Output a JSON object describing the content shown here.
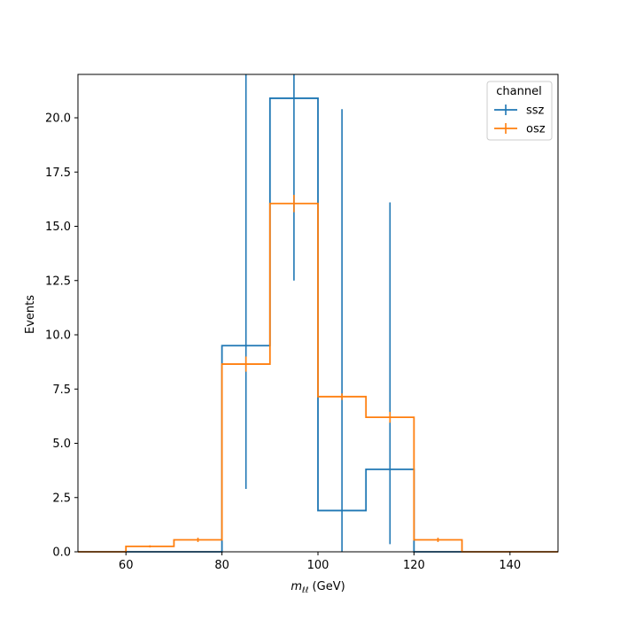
{
  "chart_data": {
    "type": "histogram-step",
    "xlabel_main": "m",
    "xlabel_sub": "ℓℓ",
    "xlabel_unit": " (GeV)",
    "ylabel": "Events",
    "xlim": [
      50,
      150
    ],
    "ylim": [
      0,
      22
    ],
    "xticks": [
      60,
      80,
      100,
      120,
      140
    ],
    "xtick_labels": [
      "60",
      "80",
      "100",
      "120",
      "140"
    ],
    "yticks": [
      0,
      2.5,
      5,
      7.5,
      10,
      12.5,
      15,
      17.5,
      20
    ],
    "ytick_labels": [
      "0.0",
      "2.5",
      "5.0",
      "7.5",
      "10.0",
      "12.5",
      "15.0",
      "17.5",
      "20.0"
    ],
    "bin_edges": [
      50,
      60,
      70,
      80,
      90,
      100,
      110,
      120,
      130,
      140,
      150
    ],
    "legend": {
      "title": "channel",
      "position": "top-right"
    },
    "series": [
      {
        "name": "ssz",
        "color": "#1f77b4",
        "values": [
          0,
          0,
          0,
          9.5,
          20.9,
          1.9,
          3.8,
          0,
          0,
          0
        ],
        "err_low": [
          0,
          0,
          0,
          2.9,
          12.5,
          0,
          0.35,
          0,
          0,
          0
        ],
        "err_high": [
          0,
          0,
          0,
          22,
          22,
          20.4,
          16.1,
          0,
          0,
          0
        ]
      },
      {
        "name": "osz",
        "color": "#ff7f0e",
        "values": [
          0,
          0.25,
          0.55,
          8.65,
          16.05,
          7.15,
          6.2,
          0.55,
          0,
          0
        ],
        "err_low": [
          0,
          0.2,
          0.45,
          8.3,
          15.65,
          7.0,
          5.95,
          0.45,
          0,
          0
        ],
        "err_high": [
          0,
          0.3,
          0.65,
          9.0,
          16.45,
          7.3,
          6.45,
          0.65,
          0,
          0
        ]
      }
    ]
  }
}
